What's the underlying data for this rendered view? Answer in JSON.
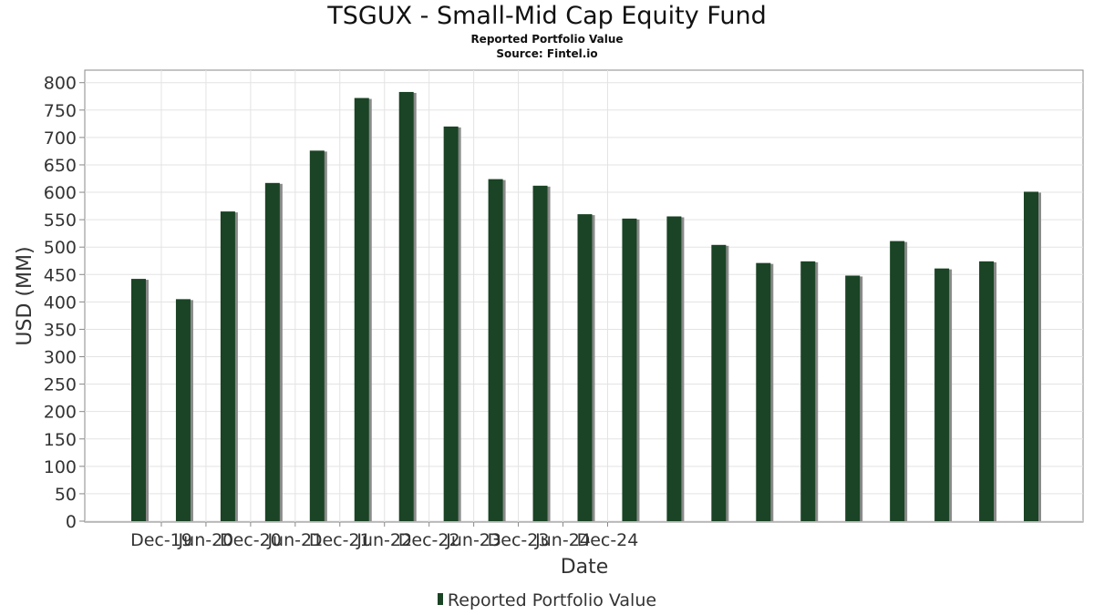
{
  "chart_data": {
    "type": "bar",
    "title": "TSGUX - Small-Mid Cap Equity Fund",
    "subtitle": [
      "Reported Portfolio Value",
      "Source: Fintel.io"
    ],
    "xlabel": "Date",
    "ylabel": "USD (MM)",
    "ylim": [
      0,
      820
    ],
    "yticks": [
      0,
      50,
      100,
      150,
      200,
      250,
      300,
      350,
      400,
      450,
      500,
      550,
      600,
      650,
      700,
      750,
      800
    ],
    "xticks": [
      "Dec-19",
      "Jun-20",
      "Dec-20",
      "Jun-21",
      "Dec-21",
      "Jun-22",
      "Dec-22",
      "Jun-23",
      "Dec-23",
      "Jun-24",
      "Dec-24"
    ],
    "grid": true,
    "legend_position": "bottom",
    "series": [
      {
        "name": "Reported Portfolio Value",
        "color": "#1a4425",
        "values": [
          442,
          405,
          565,
          617,
          676,
          772,
          783,
          720,
          624,
          612,
          560,
          552,
          556,
          504,
          471,
          474,
          448,
          511,
          461,
          474,
          601
        ]
      }
    ]
  }
}
